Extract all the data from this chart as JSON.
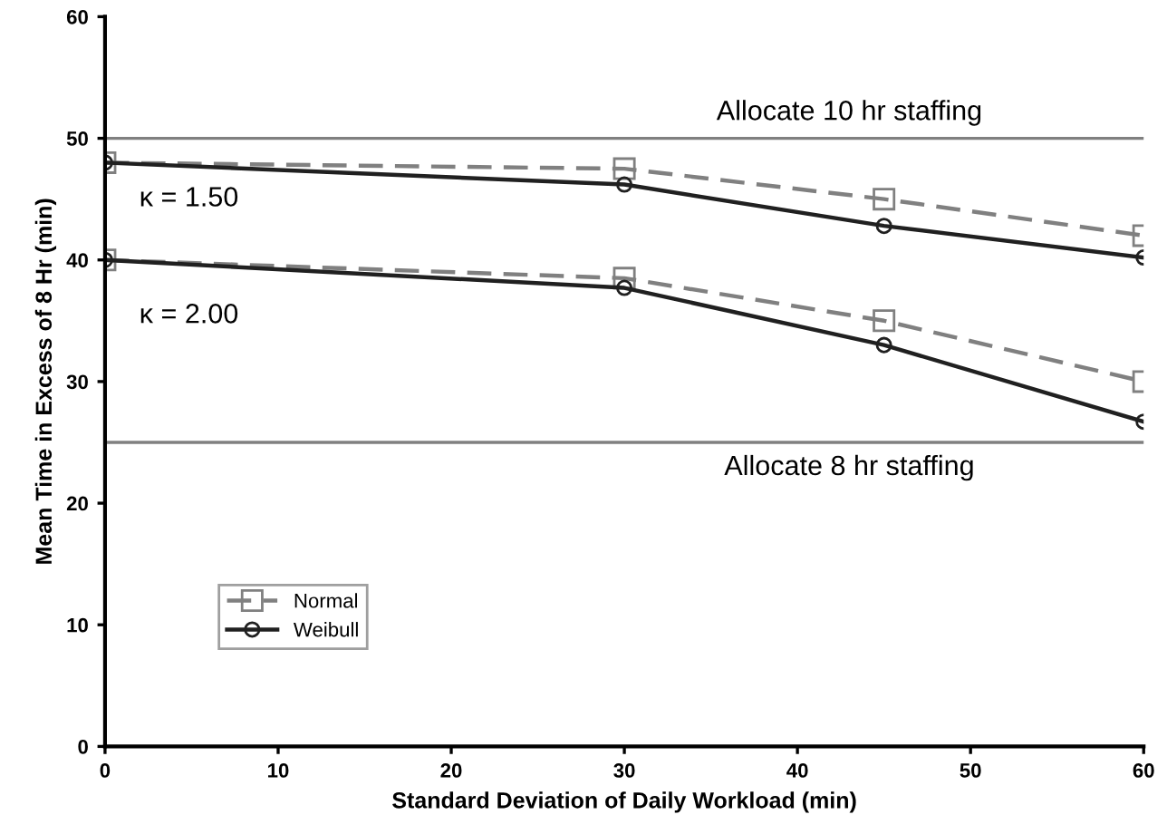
{
  "chart_data": {
    "type": "line",
    "xlabel": "Standard Deviation of Daily Workload (min)",
    "ylabel": "Mean Time in Excess of 8 Hr (min)",
    "x": [
      0,
      30,
      45,
      60
    ],
    "series": [
      {
        "name": "Normal",
        "color": "#808080",
        "values": [
          48,
          47.5,
          45,
          42
        ],
        "marker": "square",
        "line_style": "dashed"
      },
      {
        "name": "Weibull",
        "color": "#202020",
        "values": [
          48,
          46.2,
          42.8,
          40.2
        ],
        "marker": "circle",
        "line_style": "solid"
      },
      {
        "color": "#808080",
        "values": [
          40,
          38.5,
          35,
          30
        ],
        "marker": "square",
        "line_style": "dashed"
      },
      {
        "color": "#202020",
        "values": [
          40,
          37.7,
          33,
          26.7
        ],
        "marker": "circle",
        "line_style": "solid"
      }
    ],
    "xlim": [
      0,
      60
    ],
    "xticks": [
      0,
      10,
      20,
      30,
      40,
      50,
      60
    ],
    "ylim": [
      0,
      60
    ],
    "yticks": [
      0,
      10,
      20,
      30,
      40,
      50,
      60
    ],
    "ref_lines": [
      {
        "axis": "y",
        "value": 50,
        "label": "Allocate 10 hr staffing",
        "color": "#808080"
      },
      {
        "axis": "y",
        "value": 25,
        "label": "Allocate 8 hr staffing",
        "color": "#808080"
      }
    ],
    "annotations": [
      "κ = 1.50",
      "κ = 2.00"
    ],
    "grid": false,
    "legend": "bottom left"
  }
}
